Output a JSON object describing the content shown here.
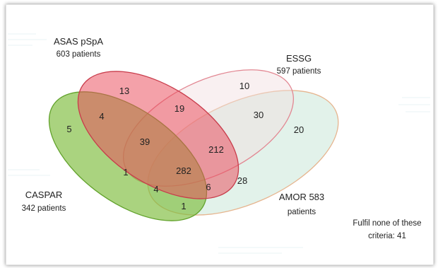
{
  "diagram": {
    "type": "venn",
    "sets": [
      {
        "name": "ASAS pSpA",
        "count_text": "603 patients",
        "color": "#ea4b5b"
      },
      {
        "name": "ESSG",
        "count_text": "597 patients",
        "color": "#f2dde0"
      },
      {
        "name": "AMOR 583",
        "count_text": "patients",
        "color": "#bfe3d0"
      },
      {
        "name": "CASPAR",
        "count_text": "342 patients",
        "color": "#7dbb3a"
      }
    ],
    "regions": [
      {
        "value": "13",
        "sets": [
          "ASAS pSpA"
        ]
      },
      {
        "value": "10",
        "sets": [
          "ESSG"
        ]
      },
      {
        "value": "20",
        "sets": [
          "AMOR"
        ]
      },
      {
        "value": "5",
        "sets": [
          "CASPAR"
        ]
      },
      {
        "value": "19",
        "sets": [
          "ASAS pSpA",
          "ESSG"
        ]
      },
      {
        "value": "30",
        "sets": [
          "ESSG",
          "AMOR"
        ]
      },
      {
        "value": "4",
        "sets": [
          "ASAS pSpA",
          "CASPAR"
        ]
      },
      {
        "value": "39",
        "sets": [
          "ASAS pSpA",
          "ESSG",
          "CASPAR"
        ]
      },
      {
        "value": "212",
        "sets": [
          "ASAS pSpA",
          "ESSG",
          "AMOR"
        ]
      },
      {
        "value": "282",
        "sets": [
          "ASAS pSpA",
          "ESSG",
          "AMOR",
          "CASPAR"
        ]
      },
      {
        "value": "1",
        "sets": [
          "ESSG",
          "CASPAR"
        ]
      },
      {
        "value": "4",
        "sets": [
          "ESSG",
          "AMOR",
          "CASPAR"
        ]
      },
      {
        "value": "6",
        "sets": [
          "ASAS pSpA",
          "AMOR",
          "CASPAR"
        ]
      },
      {
        "value": "28",
        "sets": [
          "ASAS pSpA",
          "AMOR"
        ]
      },
      {
        "value": "1",
        "sets": [
          "AMOR",
          "CASPAR"
        ]
      }
    ],
    "none_note": {
      "line1": "Fulfil none of these",
      "line2": "criteria: 41"
    }
  }
}
